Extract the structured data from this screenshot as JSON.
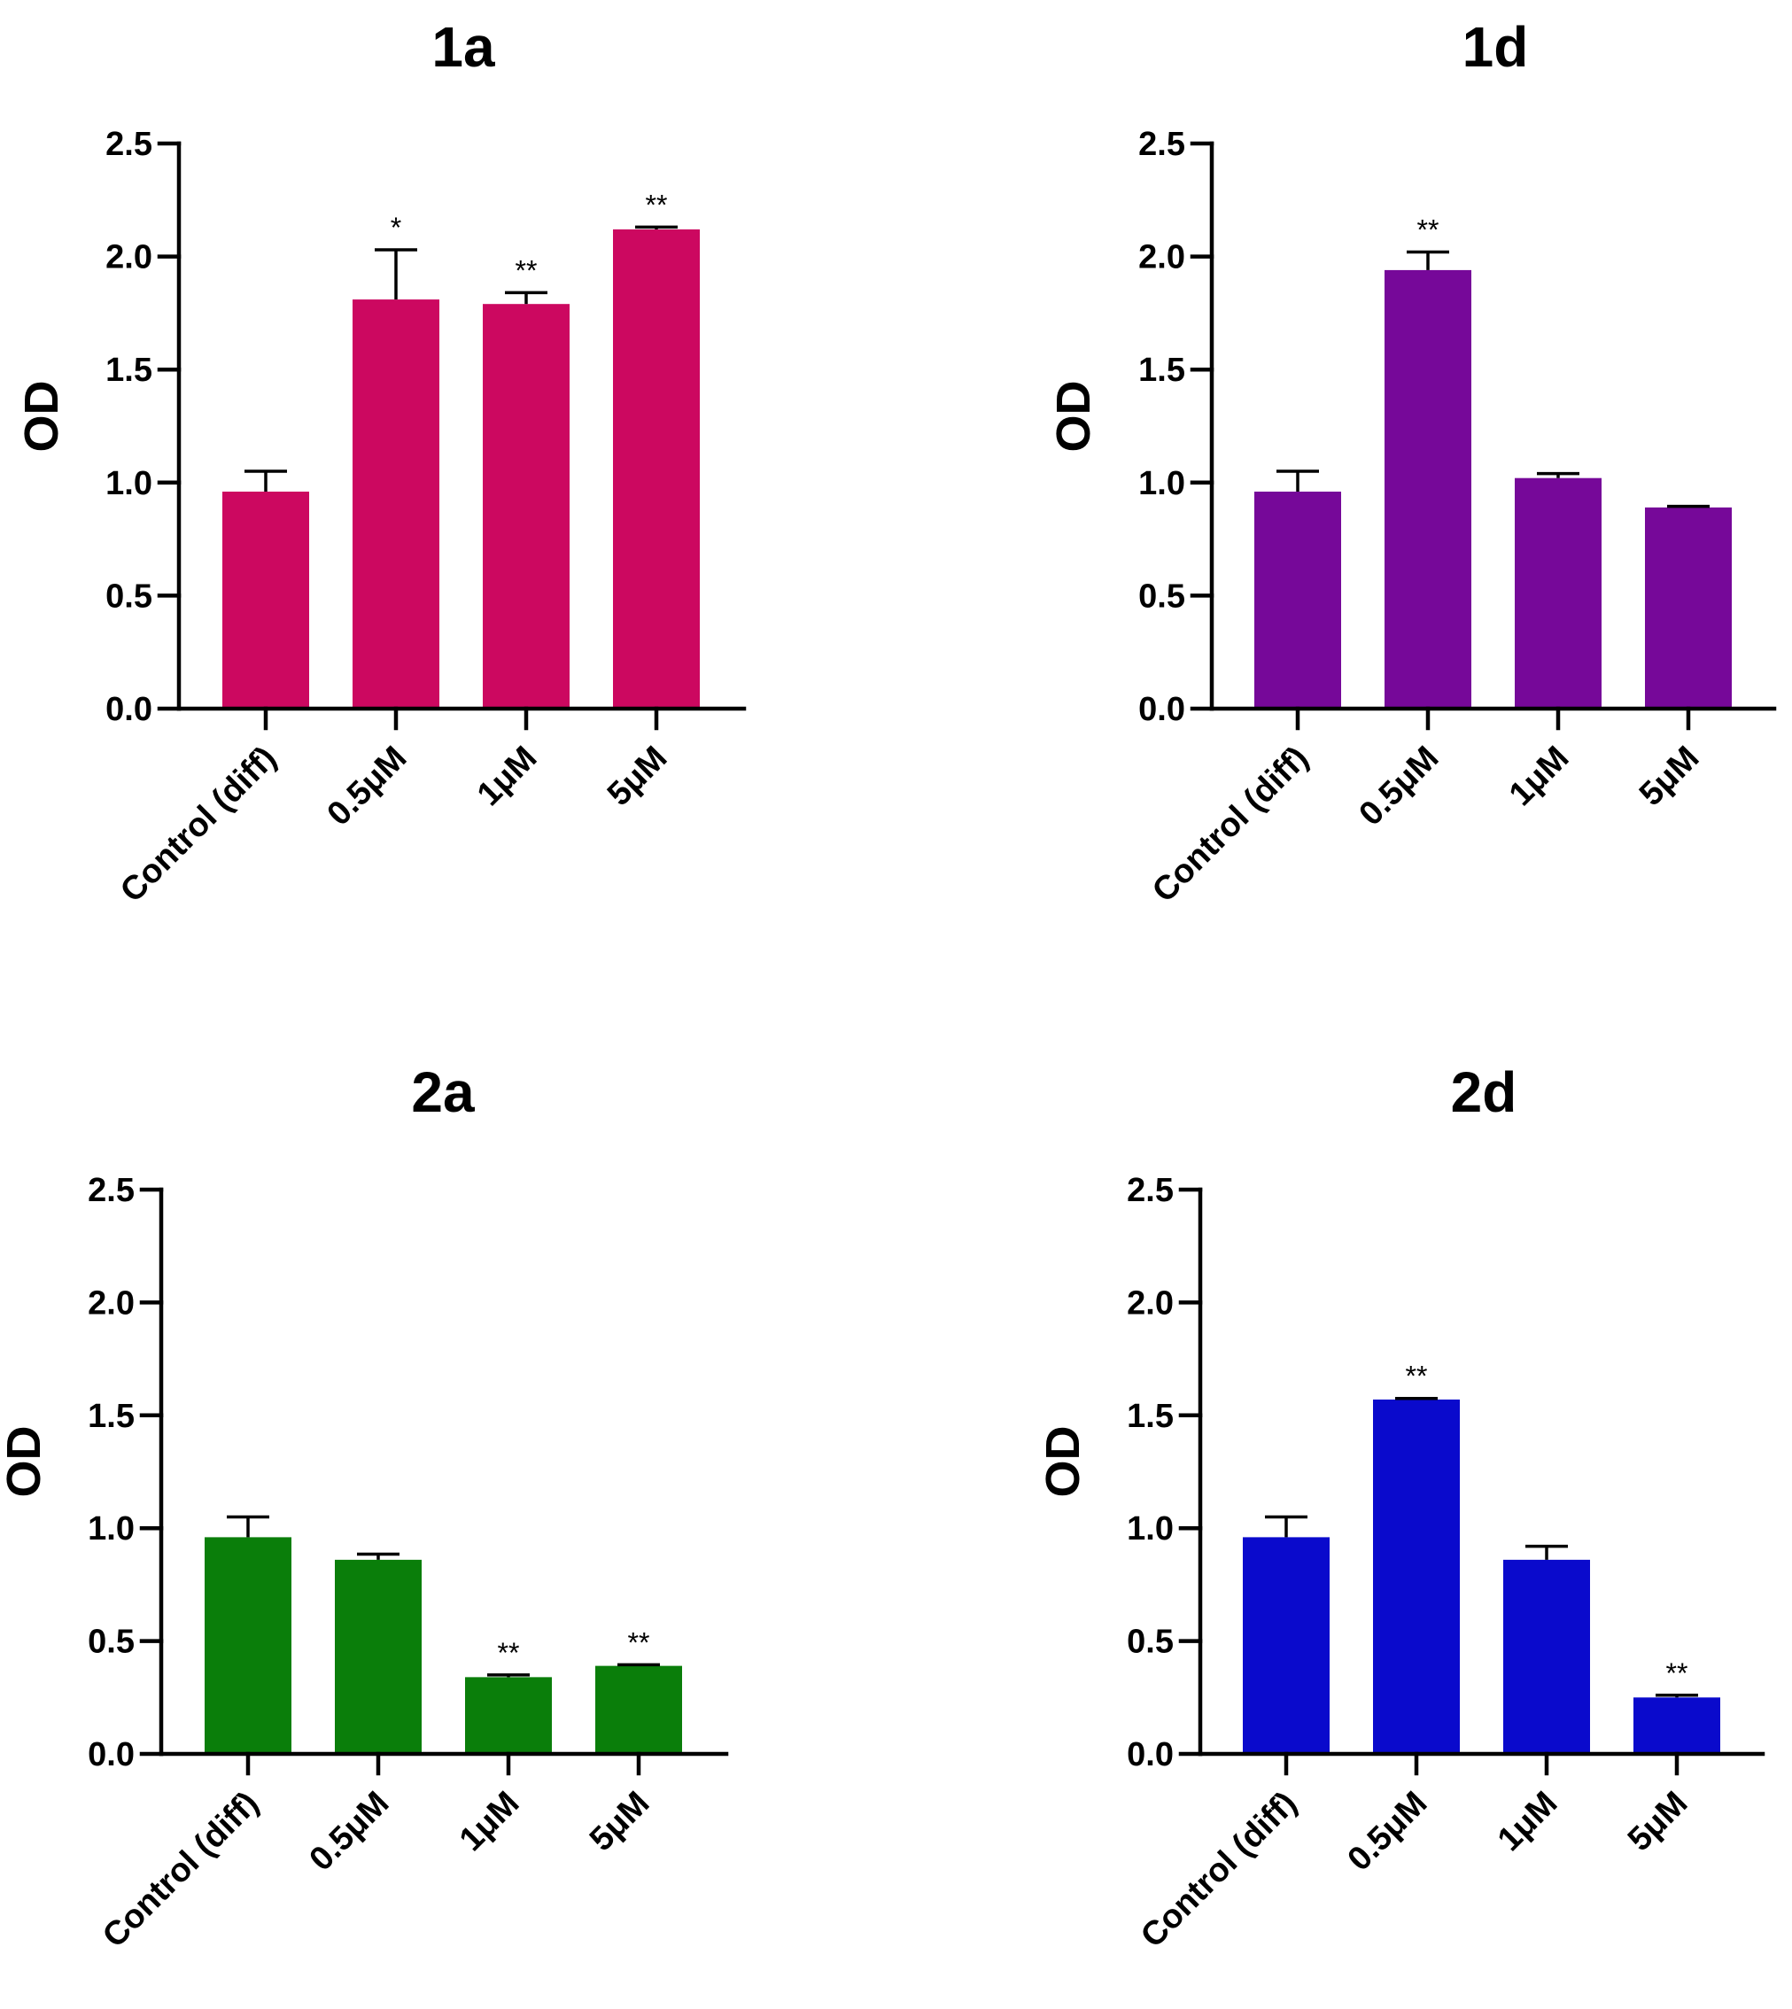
{
  "chart_data": [
    {
      "type": "bar",
      "title": "1a",
      "ylabel": "OD",
      "xlabel": "",
      "ylim": [
        0,
        2.5
      ],
      "yticks": [
        "0.0",
        "0.5",
        "1.0",
        "1.5",
        "2.0",
        "2.5"
      ],
      "categories": [
        "Control (diff)",
        "0.5μM",
        "1μM",
        "5μM"
      ],
      "values": [
        0.96,
        1.81,
        1.79,
        2.12
      ],
      "errors": [
        0.09,
        0.22,
        0.05,
        0.01
      ],
      "significance": [
        "",
        "*",
        "**",
        "**"
      ],
      "color": "#cc0860"
    },
    {
      "type": "bar",
      "title": "1d",
      "ylabel": "OD",
      "xlabel": "",
      "ylim": [
        0,
        2.5
      ],
      "yticks": [
        "0.0",
        "0.5",
        "1.0",
        "1.5",
        "2.0",
        "2.5"
      ],
      "categories": [
        "Control (diff)",
        "0.5μM",
        "1μM",
        "5μM"
      ],
      "values": [
        0.96,
        1.94,
        1.02,
        0.89
      ],
      "errors": [
        0.09,
        0.08,
        0.02,
        0.005
      ],
      "significance": [
        "",
        "**",
        "",
        ""
      ],
      "color": "#760899"
    },
    {
      "type": "bar",
      "title": "2a",
      "ylabel": "OD",
      "xlabel": "",
      "ylim": [
        0,
        2.5
      ],
      "yticks": [
        "0.0",
        "0.5",
        "1.0",
        "1.5",
        "2.0",
        "2.5"
      ],
      "categories": [
        "Control (diff)",
        "0.5μM",
        "1μM",
        "5μM"
      ],
      "values": [
        0.96,
        0.86,
        0.34,
        0.39
      ],
      "errors": [
        0.09,
        0.025,
        0.01,
        0.005
      ],
      "significance": [
        "",
        "",
        "**",
        "**"
      ],
      "color": "#0a7e0a"
    },
    {
      "type": "bar",
      "title": "2d",
      "ylabel": "OD",
      "xlabel": "",
      "ylim": [
        0,
        2.5
      ],
      "yticks": [
        "0.0",
        "0.5",
        "1.0",
        "1.5",
        "2.0",
        "2.5"
      ],
      "categories": [
        "Control (diff)",
        "0.5μM",
        "1μM",
        "5μM"
      ],
      "values": [
        0.96,
        1.57,
        0.86,
        0.25
      ],
      "errors": [
        0.09,
        0.005,
        0.06,
        0.01
      ],
      "significance": [
        "",
        "**",
        "",
        "**"
      ],
      "color": "#0a0acc"
    }
  ]
}
